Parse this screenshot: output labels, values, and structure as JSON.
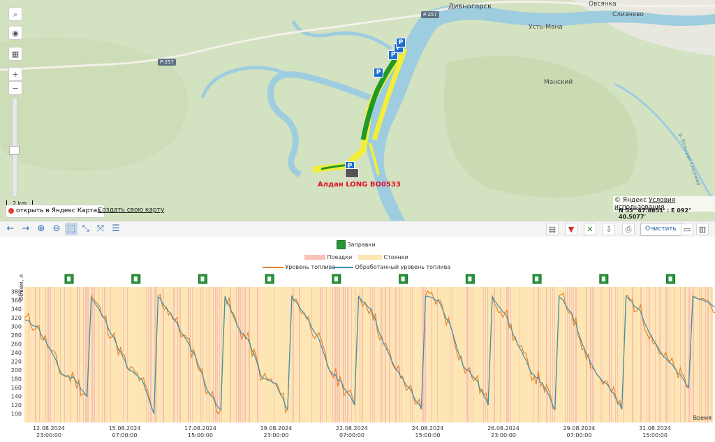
{
  "map": {
    "places": [
      "Дивногорск",
      "Овсянка",
      "Слизнево",
      "Усть-Мана",
      "Манский"
    ],
    "roads": [
      "P-257",
      "P-257"
    ],
    "river": "р. Большая Слизнева",
    "vehicle_label": "Алдан LONG ВО0533",
    "scale_label": "2 km",
    "open_yandex": "открыть в Яндекс Картах",
    "create_map": "Создать свою карту",
    "copyright": "© Яндекс",
    "terms": "Условия использования",
    "coordinates": "N 55° 47.8851' : E 092° 40.5077'",
    "controls": [
      "search-icon",
      "eye-icon",
      "layers-icon",
      "zoom-in",
      "zoom-out"
    ],
    "zoom_in_label": "+",
    "zoom_out_label": "−",
    "parking_marker": "P"
  },
  "toolbar": {
    "clear_label": "Очистить"
  },
  "chart_legend": {
    "refuel": "Заправки",
    "trips": "Поездки",
    "stops": "Стоянки",
    "fuel_level": "Уровень топлива",
    "processed_level": "Обработанный уровень топлива"
  },
  "colors": {
    "trips": "#f7c1b6",
    "stops": "#fde6b3",
    "fuel_level": "#e8842b",
    "processed_level": "#3a8fb5",
    "refuel_icon": "#27963a",
    "route_green": "#1f9a2a",
    "route_yellow": "#f2ee3a"
  },
  "chart_data": {
    "type": "line",
    "ylabel": "Объем, л",
    "xlabel": "Время",
    "ylim": [
      80,
      390
    ],
    "y_ticks": [
      100,
      120,
      140,
      160,
      180,
      200,
      220,
      240,
      260,
      280,
      300,
      320,
      340,
      360,
      380
    ],
    "x_ticks": [
      {
        "date": "12.08.2024",
        "time": "23:00:00"
      },
      {
        "date": "15.08.2024",
        "time": "07:00:00"
      },
      {
        "date": "17.08.2024",
        "time": "15:00:00"
      },
      {
        "date": "19.08.2024",
        "time": "23:00:00"
      },
      {
        "date": "22.08.2024",
        "time": "07:00:00"
      },
      {
        "date": "24.08.2024",
        "time": "15:00:00"
      },
      {
        "date": "26.08.2024",
        "time": "23:00:00"
      },
      {
        "date": "29.08.2024",
        "time": "07:00:00"
      },
      {
        "date": "31.08.2024",
        "time": "15:00:00"
      }
    ],
    "refuel_count": 10,
    "series": [
      {
        "name": "Уровень топлива",
        "cycles": [
          [
            320,
            300,
            250,
            190,
            180,
            140
          ],
          [
            370,
            320,
            260,
            200,
            180,
            100
          ],
          [
            370,
            330,
            280,
            230,
            150,
            110
          ],
          [
            370,
            300,
            260,
            180,
            170,
            110
          ],
          [
            370,
            330,
            280,
            200,
            170,
            120
          ],
          [
            370,
            340,
            260,
            200,
            160,
            110
          ],
          [
            370,
            360,
            300,
            210,
            180,
            120
          ],
          [
            370,
            330,
            260,
            200,
            170,
            110
          ],
          [
            370,
            330,
            250,
            190,
            160,
            110
          ],
          [
            370,
            340,
            280,
            230,
            200,
            160
          ],
          [
            370,
            340,
            280
          ]
        ]
      },
      {
        "name": "Обработанный уровень топлива",
        "cycles": [
          [
            315,
            300,
            250,
            190,
            180,
            140
          ],
          [
            365,
            320,
            260,
            200,
            180,
            100
          ],
          [
            368,
            330,
            280,
            230,
            150,
            110
          ],
          [
            368,
            300,
            260,
            180,
            170,
            110
          ],
          [
            368,
            330,
            280,
            200,
            170,
            120
          ],
          [
            368,
            340,
            260,
            200,
            160,
            110
          ],
          [
            368,
            360,
            300,
            210,
            180,
            120
          ],
          [
            368,
            330,
            260,
            200,
            170,
            110
          ],
          [
            368,
            330,
            250,
            190,
            160,
            110
          ],
          [
            368,
            340,
            280,
            230,
            200,
            160
          ],
          [
            368,
            340,
            285
          ]
        ]
      }
    ]
  }
}
